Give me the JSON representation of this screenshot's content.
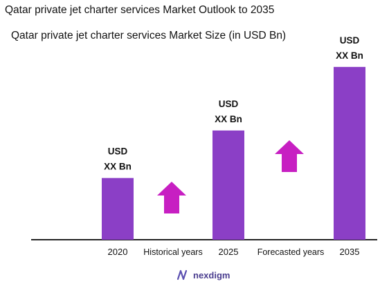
{
  "page": {
    "title": "Qatar private jet charter services Market Outlook to 2035",
    "brand": "nexdigm",
    "accent_color": "#8b3fc6",
    "arrow_color": "#c71fc2"
  },
  "chart_data": {
    "type": "bar",
    "title": "Qatar private jet charter services Market Size (in USD Bn)",
    "categories": [
      "2020",
      "2025",
      "2035"
    ],
    "values": [
      1.0,
      1.77,
      2.8
    ],
    "data_labels": [
      [
        "USD",
        "XX Bn"
      ],
      [
        "USD",
        "XX Bn"
      ],
      [
        "USD",
        "XX Bn"
      ]
    ],
    "periods": [
      "Historical years",
      "Forecasted years"
    ],
    "ylim": [
      0,
      3.0
    ],
    "grid": false,
    "legend": "none"
  }
}
